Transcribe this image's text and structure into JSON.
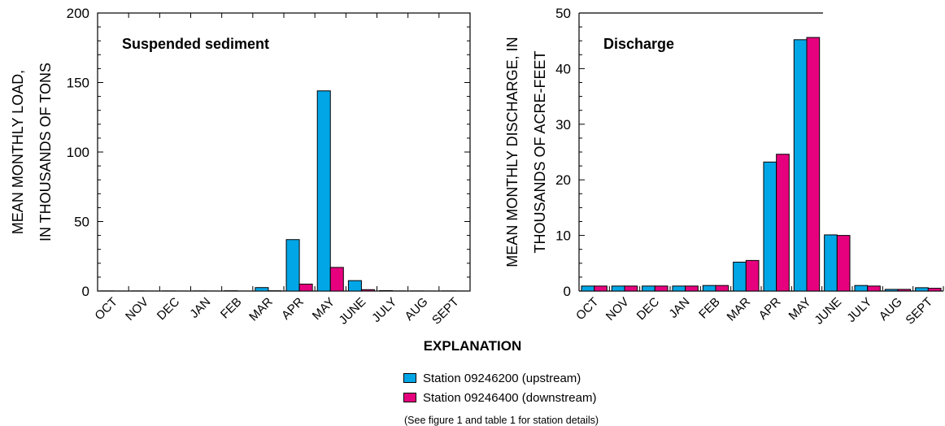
{
  "chart_data": [
    {
      "type": "bar",
      "title": "Suspended sediment",
      "ylabel": [
        "MEAN MONTHLY LOAD,",
        "IN THOUSANDS OF TONS"
      ],
      "xlabel": "",
      "ylim": [
        0,
        200
      ],
      "yticks": [
        0,
        50,
        100,
        150,
        200
      ],
      "categories": [
        "OCT",
        "NOV",
        "DEC",
        "JAN",
        "FEB",
        "MAR",
        "APR",
        "MAY",
        "JUNE",
        "JULY",
        "AUG",
        "SEPT"
      ],
      "series": [
        {
          "name": "Station 09246200 (upstream)",
          "color": "#00a6e6",
          "values": [
            0.1,
            0.1,
            0.1,
            0.1,
            0.2,
            2.5,
            37,
            144,
            7.5,
            0.3,
            0.1,
            0.1
          ]
        },
        {
          "name": "Station 09246400 (downstream)",
          "color": "#e6007e",
          "values": [
            0.05,
            0.05,
            0.05,
            0.05,
            0.05,
            0.2,
            5,
            17,
            1,
            0.1,
            0.05,
            0.05
          ]
        }
      ]
    },
    {
      "type": "bar",
      "title": "Discharge",
      "ylabel": [
        "MEAN MONTHLY DISCHARGE, IN",
        "THOUSANDS OF ACRE-FEET"
      ],
      "xlabel": "",
      "ylim": [
        0,
        50
      ],
      "yticks": [
        0,
        10,
        20,
        30,
        40,
        50
      ],
      "categories": [
        "OCT",
        "NOV",
        "DEC",
        "JAN",
        "FEB",
        "MAR",
        "APR",
        "MAY",
        "JUNE",
        "JULY",
        "AUG",
        "SEPT"
      ],
      "series": [
        {
          "name": "Station 09246200 (upstream)",
          "color": "#00a6e6",
          "values": [
            0.9,
            0.9,
            0.9,
            0.9,
            1.0,
            5.2,
            23.2,
            45.2,
            10.1,
            1.0,
            0.3,
            0.6
          ]
        },
        {
          "name": "Station 09246400 (downstream)",
          "color": "#e6007e",
          "values": [
            0.9,
            0.9,
            0.9,
            0.9,
            1.0,
            5.5,
            24.6,
            45.6,
            10.0,
            0.9,
            0.3,
            0.5
          ]
        }
      ]
    }
  ],
  "legend": {
    "title": "EXPLANATION",
    "items": [
      {
        "label": "Station 09246200 (upstream)",
        "color": "#00a6e6"
      },
      {
        "label": "Station 09246400 (downstream)",
        "color": "#e6007e"
      }
    ],
    "note": "(See figure 1 and table 1 for station details)"
  }
}
